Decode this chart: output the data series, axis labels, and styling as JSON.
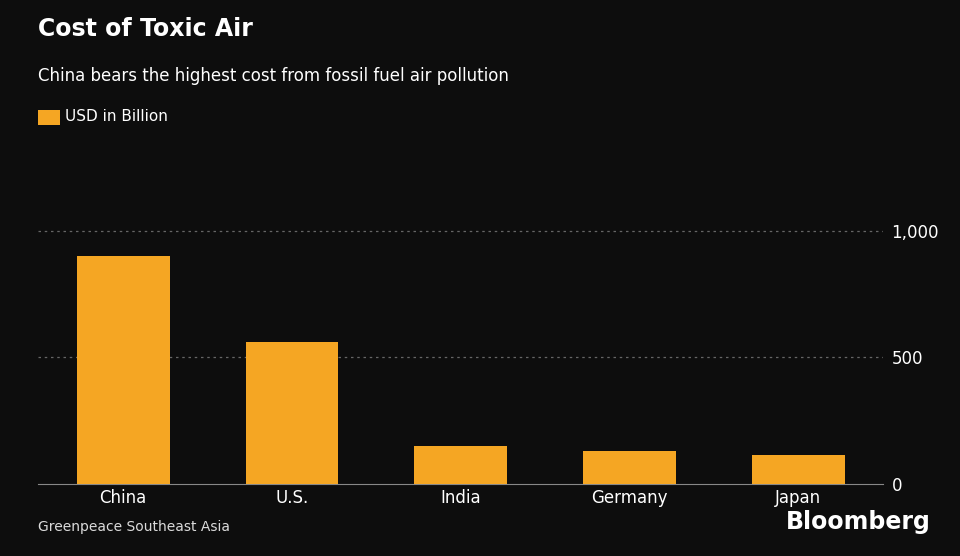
{
  "title": "Cost of Toxic Air",
  "subtitle": "China bears the highest cost from fossil fuel air pollution",
  "legend_label": "USD in Billion",
  "source": "Greenpeace Southeast Asia",
  "watermark": "Bloomberg",
  "categories": [
    "China",
    "U.S.",
    "India",
    "Germany",
    "Japan"
  ],
  "values": [
    900,
    560,
    150,
    130,
    115
  ],
  "bar_color": "#F5A623",
  "background_color": "#0d0d0d",
  "text_color": "#ffffff",
  "grid_color": "#666666",
  "axis_color": "#888888",
  "yticks": [
    0,
    500,
    1000
  ],
  "ylim": [
    0,
    1100
  ],
  "title_fontsize": 17,
  "subtitle_fontsize": 12,
  "legend_fontsize": 11,
  "tick_fontsize": 12,
  "source_fontsize": 10,
  "watermark_fontsize": 17
}
